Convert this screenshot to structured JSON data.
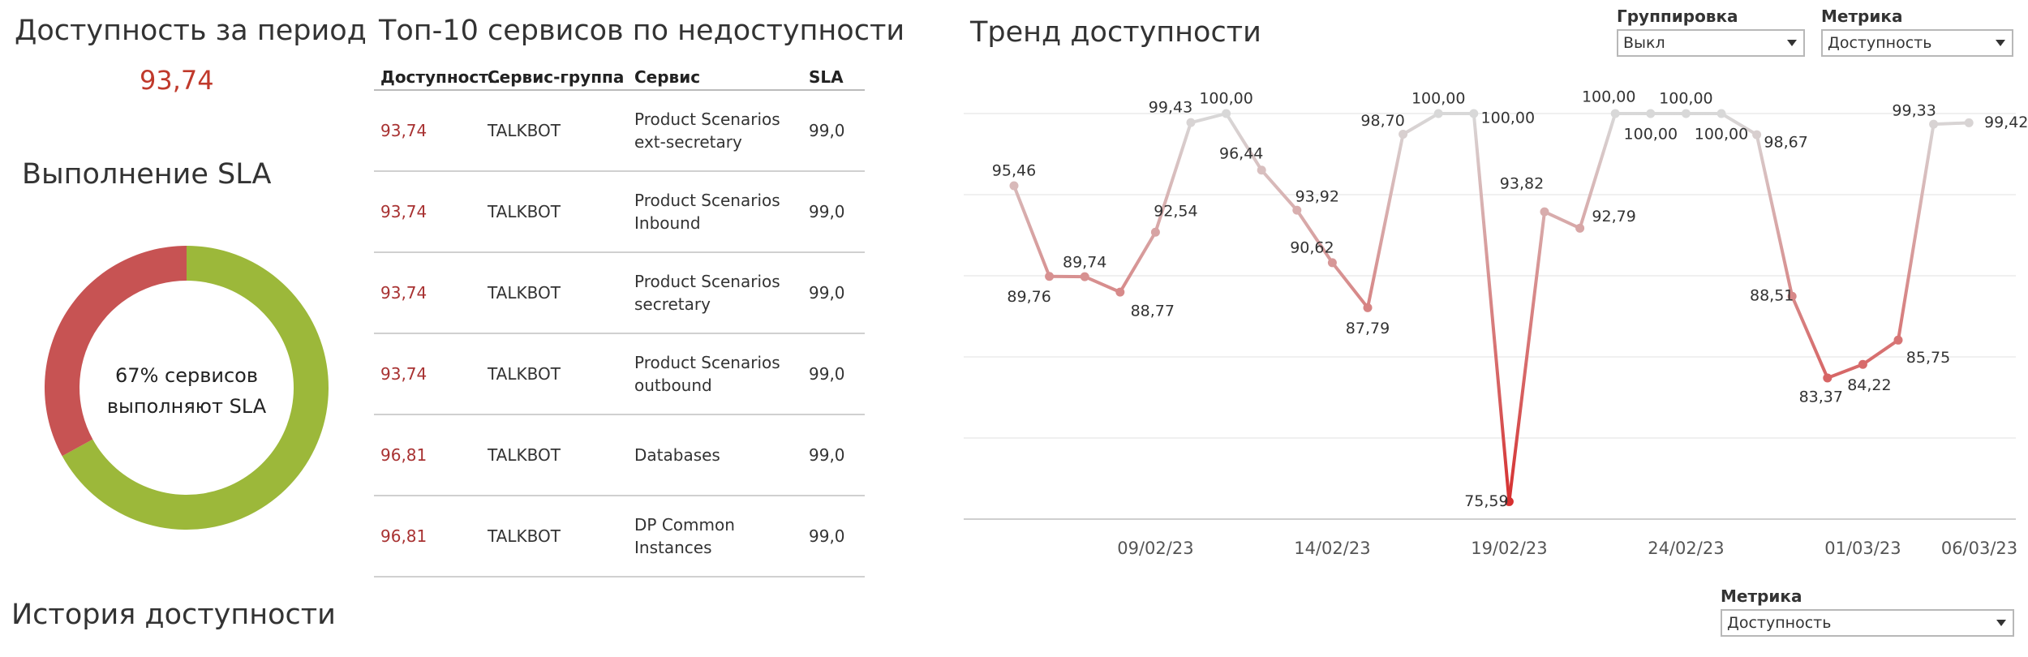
{
  "availability": {
    "title": "Доступность за период",
    "value": "93,74"
  },
  "sla": {
    "title": "Выполнение SLA",
    "center_line1": "67%  сервисов",
    "center_line2": "выполняют SLA",
    "percent_meeting": 67,
    "color_meeting": "#9cb83a",
    "color_not_meeting": "#c75353"
  },
  "history": {
    "title": "История доступности"
  },
  "top10": {
    "title": "Топ-10 сервисов по недоступности",
    "columns": [
      "Доступност..",
      "Сервис-группа",
      "Сервис",
      "SLA"
    ],
    "rows": [
      {
        "avail": "93,74",
        "group": "TALKBOT",
        "service1": "Product Scenarios",
        "service2": "ext-secretary",
        "sla": "99,0"
      },
      {
        "avail": "93,74",
        "group": "TALKBOT",
        "service1": "Product Scenarios",
        "service2": "Inbound",
        "sla": "99,0"
      },
      {
        "avail": "93,74",
        "group": "TALKBOT",
        "service1": "Product Scenarios",
        "service2": "secretary",
        "sla": "99,0"
      },
      {
        "avail": "93,74",
        "group": "TALKBOT",
        "service1": "Product Scenarios",
        "service2": "outbound",
        "sla": "99,0"
      },
      {
        "avail": "96,81",
        "group": "TALKBOT",
        "service1": "Databases",
        "service2": "",
        "sla": "99,0"
      },
      {
        "avail": "96,81",
        "group": "TALKBOT",
        "service1": "DP Common",
        "service2": "Instances",
        "sla": "99,0"
      }
    ]
  },
  "trend": {
    "title": "Тренд доступности"
  },
  "controls": {
    "grouping_label": "Группировка",
    "grouping_value": "Выкл",
    "metric_label": "Метрика",
    "metric_value": "Доступность",
    "metric2_label": "Метрика",
    "metric2_value": "Доступность"
  },
  "chart_data": {
    "type": "line",
    "x": [
      "05/02/23",
      "06/02/23",
      "07/02/23",
      "08/02/23",
      "09/02/23",
      "10/02/23",
      "11/02/23",
      "12/02/23",
      "13/02/23",
      "14/02/23",
      "15/02/23",
      "16/02/23",
      "17/02/23",
      "18/02/23",
      "19/02/23",
      "20/02/23",
      "21/02/23",
      "22/02/23",
      "23/02/23",
      "24/02/23",
      "25/02/23",
      "26/02/23",
      "27/02/23",
      "28/02/23",
      "01/03/23",
      "02/03/23",
      "03/03/23",
      "04/03/23",
      "05/03/23",
      "06/03/23"
    ],
    "values": [
      95.46,
      89.76,
      89.74,
      88.77,
      92.54,
      99.43,
      100.0,
      96.44,
      93.92,
      90.62,
      87.79,
      98.7,
      100.0,
      100.0,
      75.59,
      93.82,
      92.79,
      100.0,
      100.0,
      100.0,
      100.0,
      98.67,
      88.51,
      83.37,
      84.22,
      85.75,
      99.33,
      99.42,
      null,
      null
    ],
    "labels": [
      "95,46",
      "89,76",
      "89,74",
      "88,77",
      "92,54",
      "99,43",
      "100,00",
      "96,44",
      "93,92",
      "90,62",
      "87,79",
      "98,70",
      "100,00",
      "100,00",
      "75,59",
      "93,82",
      "92,79",
      "100,00",
      "100,00",
      "100,00",
      "100,00",
      "98,67",
      "88,51",
      "83,37",
      "84,22",
      "85,75",
      "99,33",
      "99,42"
    ],
    "xticks": [
      "09/02/23",
      "14/02/23",
      "19/02/23",
      "24/02/23",
      "01/03/23",
      "06/03/23"
    ],
    "ylim": [
      75,
      100
    ],
    "grid": true,
    "color_high": "#d8d8d8",
    "color_low": "#d62b2b"
  }
}
